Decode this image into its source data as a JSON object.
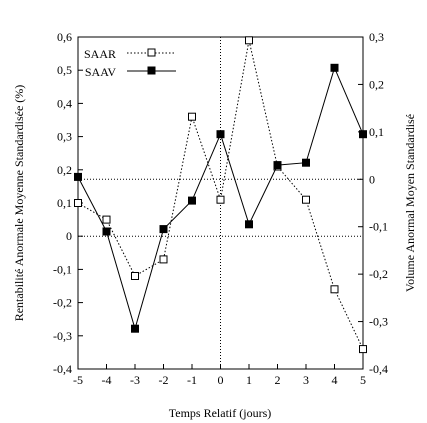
{
  "chart_data": {
    "type": "line",
    "xlabel": "Temps Relatif (jours)",
    "ylabel_left": "Rentabilité Anormale Moyenne Standardisée (%)",
    "ylabel_right": "Volume Anormal Moyen Standardisé",
    "x": [
      -5,
      -4,
      -3,
      -2,
      -1,
      0,
      1,
      2,
      3,
      4,
      5
    ],
    "x_ticks": [
      "-5",
      "-4",
      "-3",
      "-2",
      "-1",
      "0",
      "1",
      "2",
      "3",
      "4",
      "5"
    ],
    "xlim": [
      -5,
      5
    ],
    "ylim_left": [
      -0.4,
      0.6
    ],
    "yticks_left": [
      "-0,4",
      "-0,3",
      "-0,2",
      "-0,1",
      "0",
      "0,1",
      "0,2",
      "0,3",
      "0,4",
      "0,5",
      "0,6"
    ],
    "ylim_right": [
      -0.4,
      0.3
    ],
    "yticks_right": [
      "-0,4",
      "-0,3",
      "-0,2",
      "-0,1",
      "0",
      "0,1",
      "0,2",
      "0,3"
    ],
    "reference_lines": {
      "left_y0": 0,
      "right_y0": 0,
      "x0": 0
    },
    "legend_placement": "top-left",
    "series": [
      {
        "name": "SAAR",
        "axis": "left",
        "style": "dotted",
        "marker": "open-square",
        "values": [
          0.1,
          0.05,
          -0.12,
          -0.07,
          0.36,
          0.11,
          0.59,
          0.21,
          0.11,
          -0.16,
          -0.34
        ]
      },
      {
        "name": "SAAV",
        "axis": "right",
        "style": "solid",
        "marker": "filled-square",
        "values": [
          0.005,
          -0.11,
          -0.315,
          -0.105,
          -0.045,
          0.095,
          -0.095,
          0.03,
          0.035,
          0.235,
          0.095
        ]
      }
    ]
  }
}
